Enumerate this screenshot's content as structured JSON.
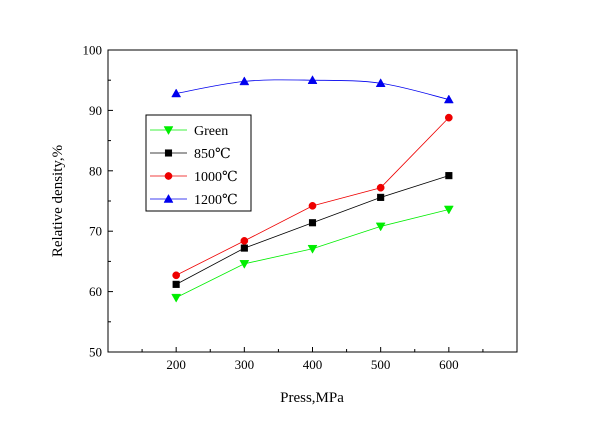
{
  "chart_data": {
    "type": "line",
    "title": "",
    "xlabel": "Press,MPa",
    "ylabel": "Relative density,%",
    "xlim": [
      100,
      700
    ],
    "ylim": [
      50,
      100
    ],
    "x_ticks": [
      "200",
      "300",
      "400",
      "500",
      "600"
    ],
    "y_ticks": [
      "50",
      "60",
      "70",
      "80",
      "90",
      "100"
    ],
    "x": [
      200,
      300,
      400,
      500,
      600
    ],
    "grid": false,
    "legend_position": "left",
    "series": [
      {
        "name": "Green",
        "values": [
          59.0,
          64.6,
          67.1,
          70.8,
          73.6
        ],
        "color": "#00ee00",
        "marker": "triangle-down"
      },
      {
        "name": "850℃",
        "values": [
          61.2,
          67.2,
          71.4,
          75.6,
          79.2
        ],
        "color": "#000000",
        "marker": "square"
      },
      {
        "name": "1000℃",
        "values": [
          62.7,
          68.4,
          74.2,
          77.2,
          88.8
        ],
        "color": "#ee0000",
        "marker": "circle"
      },
      {
        "name": "1200℃",
        "values": [
          92.8,
          94.8,
          95.0,
          94.5,
          91.8
        ],
        "color": "#0000ee",
        "marker": "triangle-up"
      }
    ]
  }
}
